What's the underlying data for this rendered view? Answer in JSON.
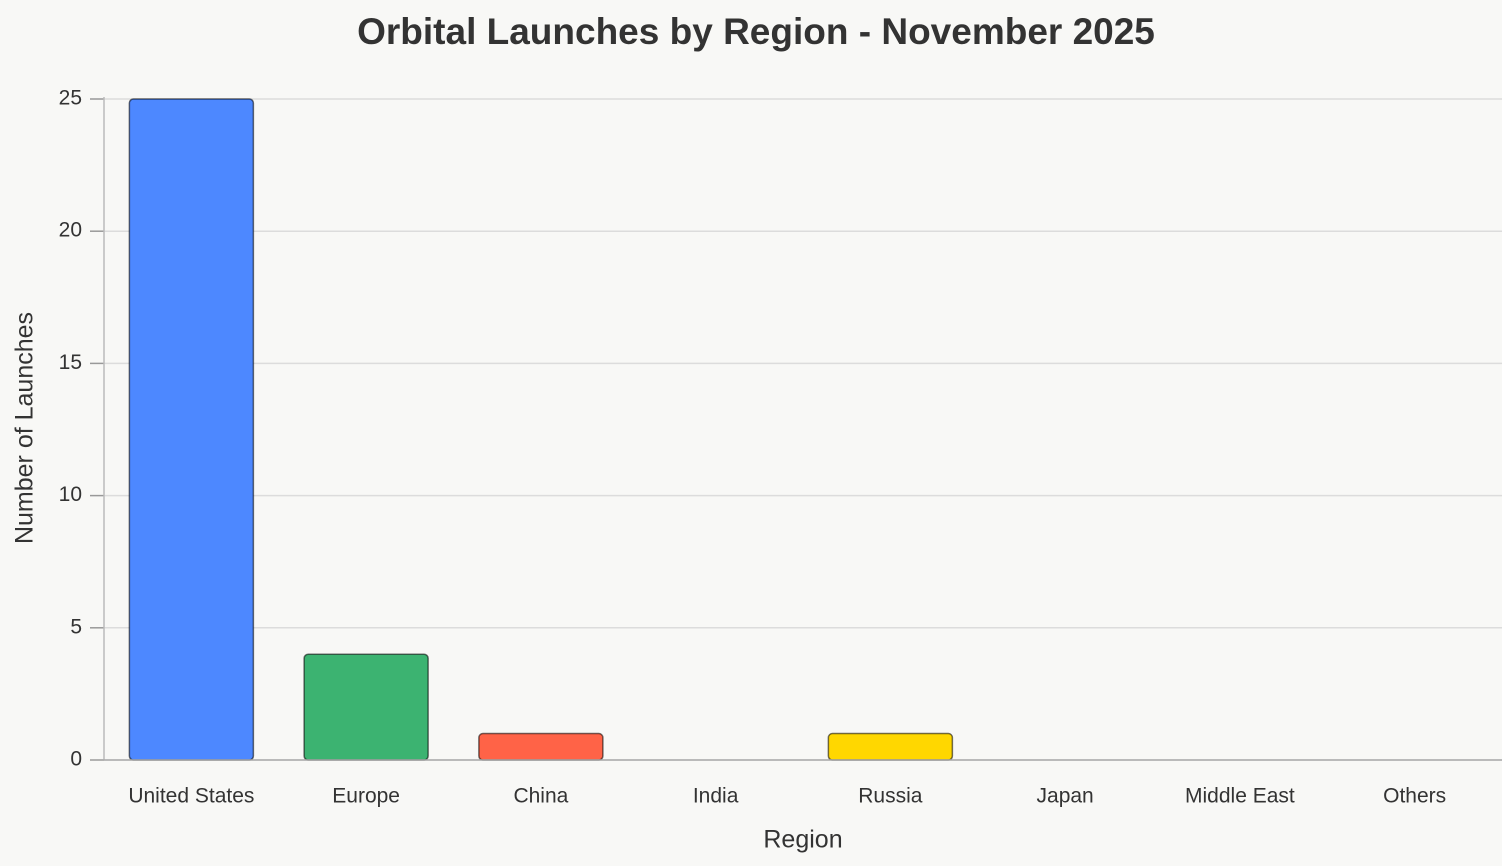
{
  "chart_data": {
    "type": "bar",
    "title": "Orbital Launches by Region - November 2025",
    "x_label": "Region",
    "y_label": "Number of Launches",
    "categories": [
      "United States",
      "Europe",
      "China",
      "India",
      "Russia",
      "Japan",
      "Middle East",
      "Others"
    ],
    "values": [
      25,
      4,
      1,
      0,
      1,
      0,
      0,
      0
    ],
    "colors": [
      "#4d88ff",
      "#3cb371",
      "#ff6347",
      "#ff9933",
      "#ffd700",
      "#bc002d",
      "#8e44ad",
      "#999999"
    ],
    "ylim": [
      0,
      25
    ],
    "yticks": [
      0,
      5,
      10,
      15,
      20,
      25
    ],
    "grid": true
  }
}
